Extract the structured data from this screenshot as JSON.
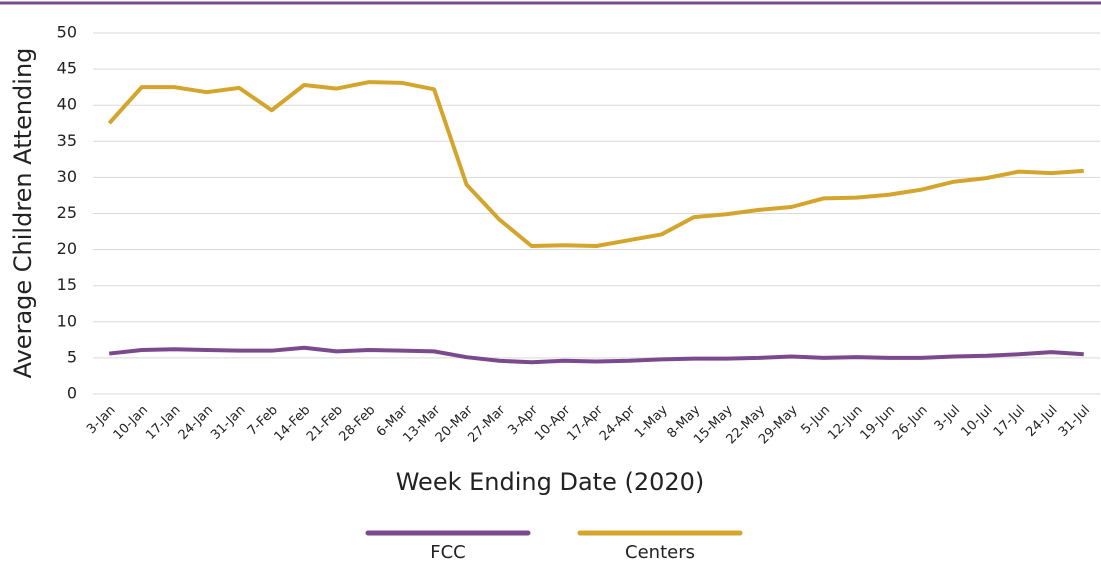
{
  "chart_data": {
    "type": "line",
    "x_label": "Week Ending Date (2020)",
    "y_label": "Average Children Attending",
    "categories": [
      "3-Jan",
      "10-Jan",
      "17-Jan",
      "24-Jan",
      "31-Jan",
      "7-Feb",
      "14-Feb",
      "21-Feb",
      "28-Feb",
      "6-Mar",
      "13-Mar",
      "20-Mar",
      "27-Mar",
      "3-Apr",
      "10-Apr",
      "17-Apr",
      "24-Apr",
      "1-May",
      "8-May",
      "15-May",
      "22-May",
      "29-May",
      "5-Jun",
      "12-Jun",
      "19-Jun",
      "26-Jun",
      "3-Jul",
      "10-Jul",
      "17-Jul",
      "24-Jul",
      "31-Jul"
    ],
    "series": [
      {
        "name": "FCC",
        "color": "#7b4a8e",
        "values": [
          5.6,
          6.1,
          6.2,
          6.1,
          6.0,
          6.0,
          6.4,
          5.9,
          6.1,
          6.0,
          5.9,
          5.1,
          4.6,
          4.4,
          4.6,
          4.5,
          4.6,
          4.8,
          4.9,
          4.9,
          5.0,
          5.2,
          5.0,
          5.1,
          5.0,
          5.0,
          5.2,
          5.3,
          5.5,
          5.8,
          5.5
        ]
      },
      {
        "name": "Centers",
        "color": "#d4a52c",
        "values": [
          37.5,
          42.5,
          42.5,
          41.8,
          42.4,
          39.3,
          42.8,
          42.3,
          43.2,
          43.1,
          42.2,
          29.0,
          24.2,
          20.5,
          20.6,
          20.5,
          21.3,
          22.1,
          24.5,
          24.9,
          25.5,
          25.9,
          27.1,
          27.2,
          27.6,
          28.3,
          29.4,
          29.9,
          30.8,
          30.6,
          30.9
        ]
      }
    ],
    "ylim": [
      0,
      50
    ],
    "yticks": [
      0,
      5,
      10,
      15,
      20,
      25,
      30,
      35,
      40,
      45,
      50
    ],
    "grid": true,
    "legend": "bottom"
  }
}
